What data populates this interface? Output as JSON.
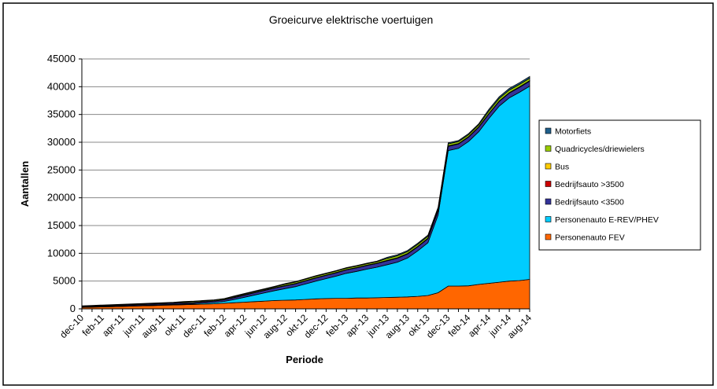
{
  "chart_data": {
    "type": "stacked-area",
    "title": "Groeicurve elektrische voertuigen",
    "x_label": "Periode",
    "y_label": "Aantallen",
    "categories": [
      "dec-10",
      null,
      "feb-11",
      null,
      "apr-11",
      null,
      "jun-11",
      null,
      "aug-11",
      null,
      "okt-11",
      null,
      "dec-11",
      null,
      "feb-12",
      null,
      "apr-12",
      null,
      "jun-12",
      null,
      "aug-12",
      null,
      "okt-12",
      null,
      "dec-12",
      null,
      "feb-13",
      null,
      "apr-13",
      null,
      "jun-13",
      null,
      "aug-13",
      null,
      "okt-13",
      null,
      "dec-13",
      null,
      "feb-14",
      null,
      "apr-14",
      null,
      "jun-14",
      null,
      "aug-14"
    ],
    "series": [
      {
        "name": "Personenauto FEV",
        "color": "#ff6600",
        "values": [
          250,
          300,
          350,
          400,
          450,
          500,
          550,
          600,
          650,
          700,
          750,
          800,
          850,
          900,
          1000,
          1100,
          1200,
          1300,
          1400,
          1500,
          1550,
          1600,
          1700,
          1800,
          1850,
          1900,
          1900,
          1950,
          1950,
          2000,
          2050,
          2100,
          2150,
          2250,
          2400,
          2900,
          4100,
          4100,
          4150,
          4400,
          4600,
          4800,
          5000,
          5100,
          5300
        ]
      },
      {
        "name": "Personenauto E-REV/PHEV",
        "color": "#00ccff",
        "values": [
          20,
          30,
          40,
          50,
          60,
          70,
          80,
          90,
          100,
          110,
          130,
          150,
          200,
          250,
          350,
          600,
          900,
          1200,
          1500,
          1800,
          2100,
          2400,
          2800,
          3200,
          3600,
          4000,
          4500,
          4800,
          5200,
          5500,
          5900,
          6300,
          7000,
          8200,
          9500,
          14000,
          24400,
          24800,
          26000,
          27500,
          29700,
          31700,
          33000,
          33900,
          34800
        ]
      },
      {
        "name": "Bedrijfsauto <3500",
        "color": "#333399",
        "values": [
          100,
          110,
          120,
          130,
          140,
          150,
          160,
          170,
          180,
          190,
          200,
          210,
          230,
          250,
          280,
          320,
          360,
          400,
          430,
          460,
          490,
          520,
          540,
          560,
          580,
          600,
          620,
          640,
          660,
          680,
          700,
          710,
          720,
          730,
          740,
          750,
          760,
          770,
          780,
          800,
          820,
          840,
          860,
          880,
          900
        ]
      },
      {
        "name": "Bedrijfsauto >3500",
        "color": "#cc0000",
        "values": [
          10,
          10,
          10,
          10,
          10,
          10,
          10,
          10,
          10,
          10,
          10,
          10,
          10,
          10,
          10,
          20,
          20,
          20,
          20,
          20,
          20,
          20,
          20,
          20,
          20,
          20,
          20,
          20,
          20,
          20,
          30,
          30,
          30,
          30,
          30,
          30,
          30,
          30,
          30,
          30,
          30,
          30,
          30,
          30,
          30
        ]
      },
      {
        "name": "Bus",
        "color": "#ffcc00",
        "values": [
          20,
          20,
          20,
          20,
          20,
          20,
          20,
          20,
          20,
          20,
          20,
          20,
          20,
          20,
          20,
          40,
          40,
          40,
          40,
          40,
          40,
          40,
          40,
          40,
          40,
          40,
          40,
          40,
          40,
          40,
          60,
          60,
          60,
          60,
          60,
          60,
          60,
          60,
          60,
          60,
          60,
          60,
          60,
          60,
          60
        ]
      },
      {
        "name": "Quadricycles/driewielers",
        "color": "#99cc00",
        "values": [
          100,
          100,
          100,
          100,
          100,
          100,
          100,
          100,
          100,
          100,
          150,
          150,
          150,
          150,
          150,
          150,
          150,
          150,
          150,
          150,
          250,
          250,
          250,
          250,
          250,
          250,
          250,
          250,
          250,
          250,
          350,
          350,
          350,
          350,
          350,
          350,
          350,
          350,
          350,
          350,
          450,
          450,
          450,
          450,
          450
        ]
      },
      {
        "name": "Motorfiets",
        "color": "#1f5f8b",
        "values": [
          50,
          50,
          50,
          50,
          50,
          50,
          50,
          50,
          50,
          50,
          50,
          50,
          50,
          50,
          50,
          100,
          100,
          100,
          100,
          100,
          100,
          100,
          100,
          100,
          100,
          100,
          100,
          100,
          100,
          100,
          200,
          200,
          200,
          200,
          200,
          200,
          200,
          200,
          200,
          200,
          300,
          300,
          300,
          300,
          300
        ]
      }
    ],
    "ylim": [
      0,
      45000
    ],
    "yticks": [
      0,
      5000,
      10000,
      15000,
      20000,
      25000,
      30000,
      35000,
      40000,
      45000
    ],
    "grid": true
  }
}
